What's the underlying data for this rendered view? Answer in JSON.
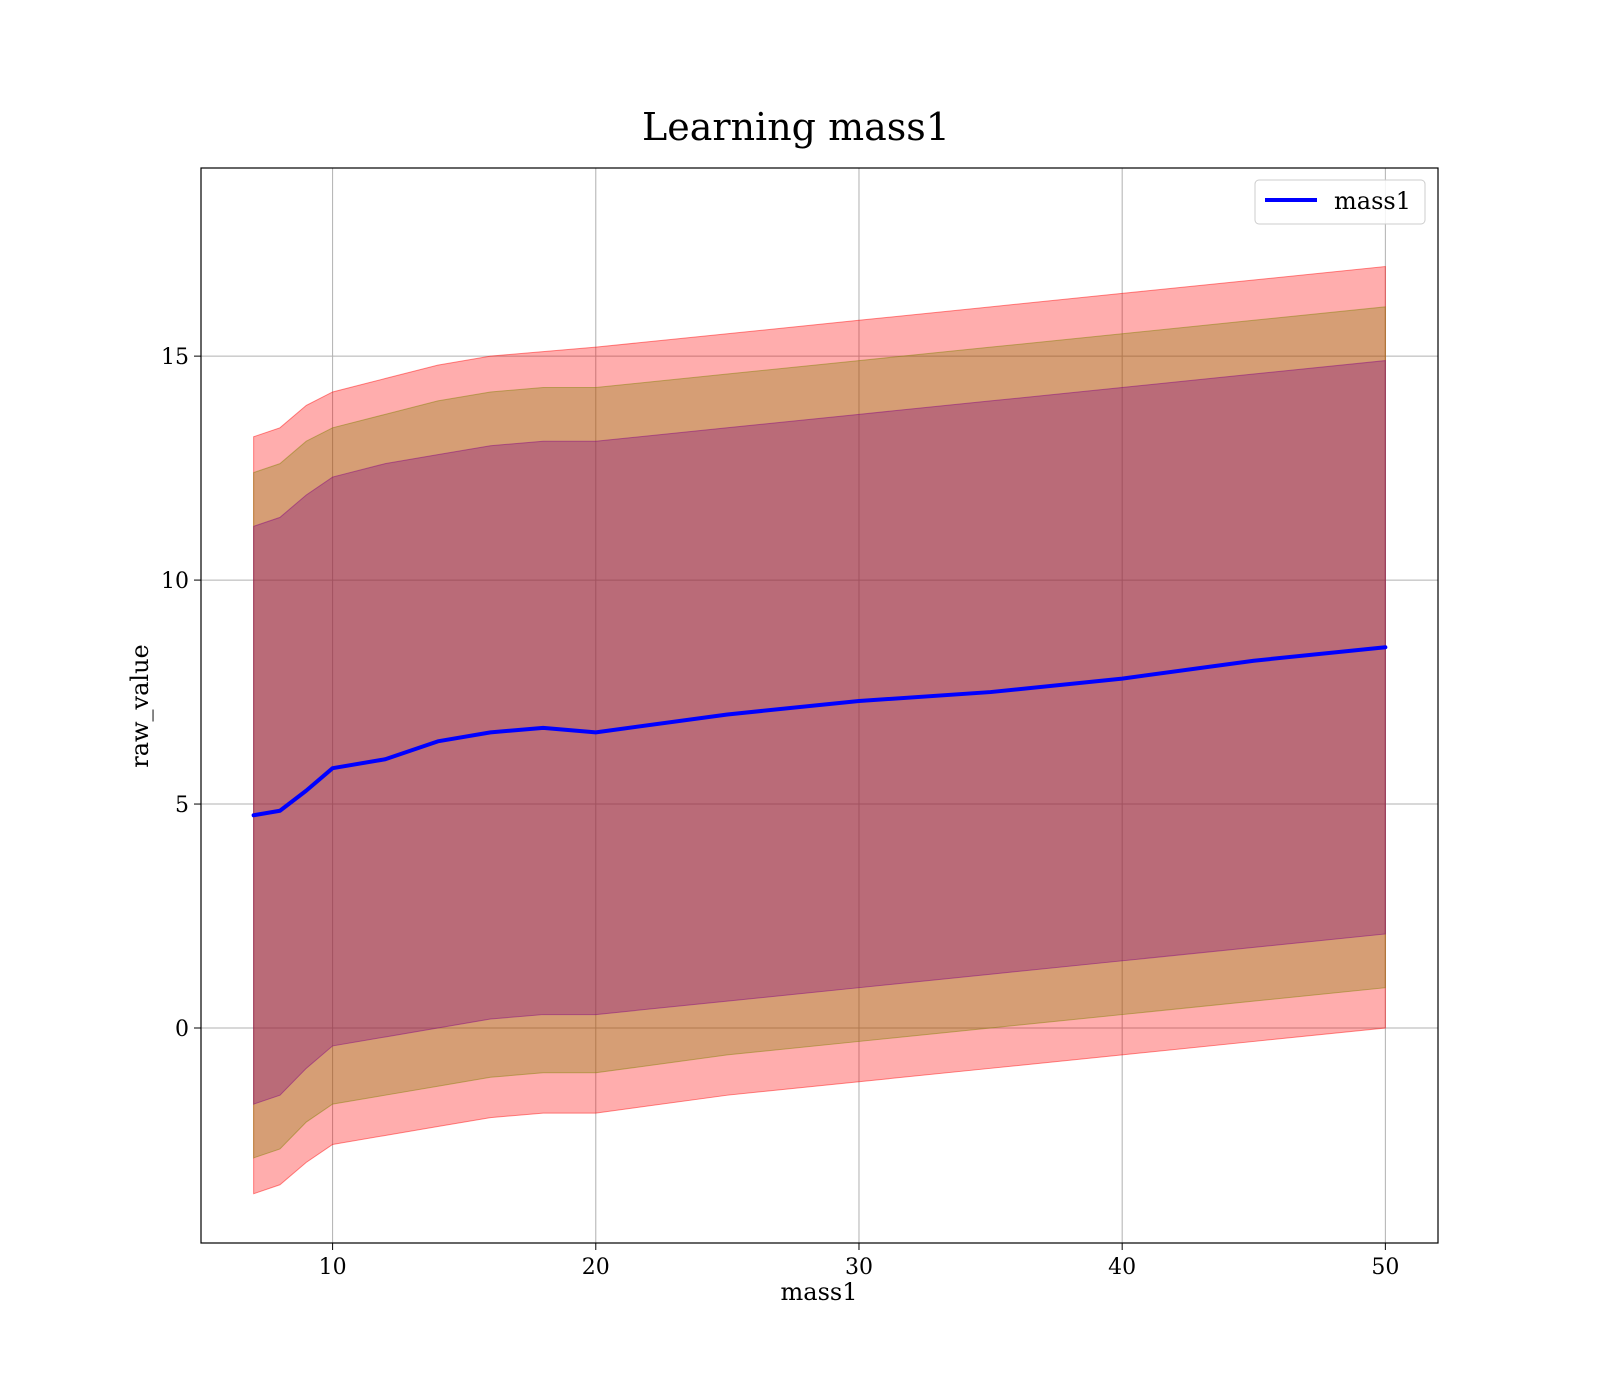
{
  "chart_data": {
    "type": "area",
    "title": "Learning mass1",
    "xlabel": "mass1",
    "ylabel": "raw_value",
    "xlim": [
      5,
      52
    ],
    "ylim": [
      -4.8,
      19.2
    ],
    "grid": true,
    "legend_position": "top-right",
    "x_ticks": [
      10,
      20,
      30,
      40,
      50
    ],
    "y_ticks": [
      0,
      5,
      10,
      15
    ],
    "x": [
      7,
      8,
      9,
      10,
      12,
      14,
      16,
      18,
      20,
      25,
      30,
      35,
      40,
      45,
      50
    ],
    "series": [
      {
        "name": "mass1",
        "kind": "line",
        "color": "#0000ff",
        "values": [
          4.75,
          4.85,
          5.3,
          5.8,
          6.0,
          6.4,
          6.6,
          6.7,
          6.6,
          7.0,
          7.3,
          7.5,
          7.8,
          8.2,
          8.5
        ]
      },
      {
        "kind": "band",
        "color": "#ff0000",
        "opacity": 0.32,
        "lower": [
          -3.7,
          -3.5,
          -3.0,
          -2.6,
          -2.4,
          -2.2,
          -2.0,
          -1.9,
          -1.9,
          -1.5,
          -1.2,
          -0.9,
          -0.6,
          -0.3,
          0.0
        ],
        "upper": [
          13.2,
          13.4,
          13.9,
          14.2,
          14.5,
          14.8,
          15.0,
          15.1,
          15.2,
          15.5,
          15.8,
          16.1,
          16.4,
          16.7,
          17.0
        ]
      },
      {
        "kind": "band",
        "color": "#808000",
        "opacity": 0.32,
        "lower": [
          -2.9,
          -2.7,
          -2.1,
          -1.7,
          -1.5,
          -1.3,
          -1.1,
          -1.0,
          -1.0,
          -0.6,
          -0.3,
          0.0,
          0.3,
          0.6,
          0.9
        ],
        "upper": [
          12.4,
          12.6,
          13.1,
          13.4,
          13.7,
          14.0,
          14.2,
          14.3,
          14.3,
          14.6,
          14.9,
          15.2,
          15.5,
          15.8,
          16.1
        ]
      },
      {
        "kind": "band",
        "color": "#800080",
        "opacity": 0.32,
        "lower": [
          -1.7,
          -1.5,
          -0.9,
          -0.4,
          -0.2,
          0.0,
          0.2,
          0.3,
          0.3,
          0.6,
          0.9,
          1.2,
          1.5,
          1.8,
          2.1
        ],
        "upper": [
          11.2,
          11.4,
          11.9,
          12.3,
          12.6,
          12.8,
          13.0,
          13.1,
          13.1,
          13.4,
          13.7,
          14.0,
          14.3,
          14.6,
          14.9
        ]
      }
    ]
  }
}
